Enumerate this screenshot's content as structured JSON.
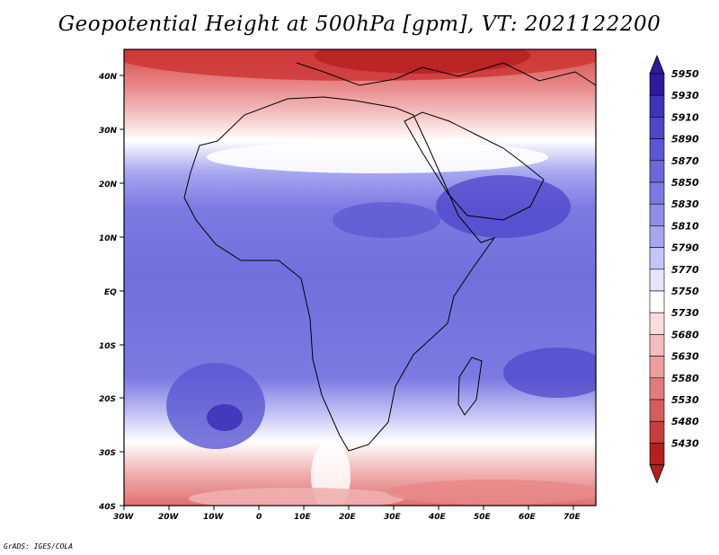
{
  "title": "Geopotential Height at 500hPa [gpm], VT: 2021122200",
  "credit": "GrADS: IGES/COLA",
  "map": {
    "lat_labels": [
      "40N",
      "30N",
      "20N",
      "10N",
      "EQ",
      "10S",
      "20S",
      "30S",
      "40S"
    ],
    "lon_labels": [
      "30W",
      "20W",
      "10W",
      "0",
      "10E",
      "20E",
      "30E",
      "40E",
      "50E",
      "60E",
      "70E"
    ]
  },
  "colorbar": {
    "levels": [
      "5950",
      "5930",
      "5910",
      "5890",
      "5870",
      "5850",
      "5830",
      "5810",
      "5790",
      "5770",
      "5750",
      "5730",
      "5680",
      "5630",
      "5580",
      "5530",
      "5480",
      "5430"
    ],
    "colors": [
      "#2d1a9e",
      "#3d34b8",
      "#4c46c9",
      "#5a57d2",
      "#6a68db",
      "#7b7ae2",
      "#8e8ee9",
      "#a6a6f0",
      "#c4c4f6",
      "#e4e4fb",
      "#ffffff",
      "#fbdcdc",
      "#f4bcbc",
      "#ec9d9d",
      "#e27c7c",
      "#d75d5d",
      "#c93c3c",
      "#b51f1f"
    ]
  }
}
